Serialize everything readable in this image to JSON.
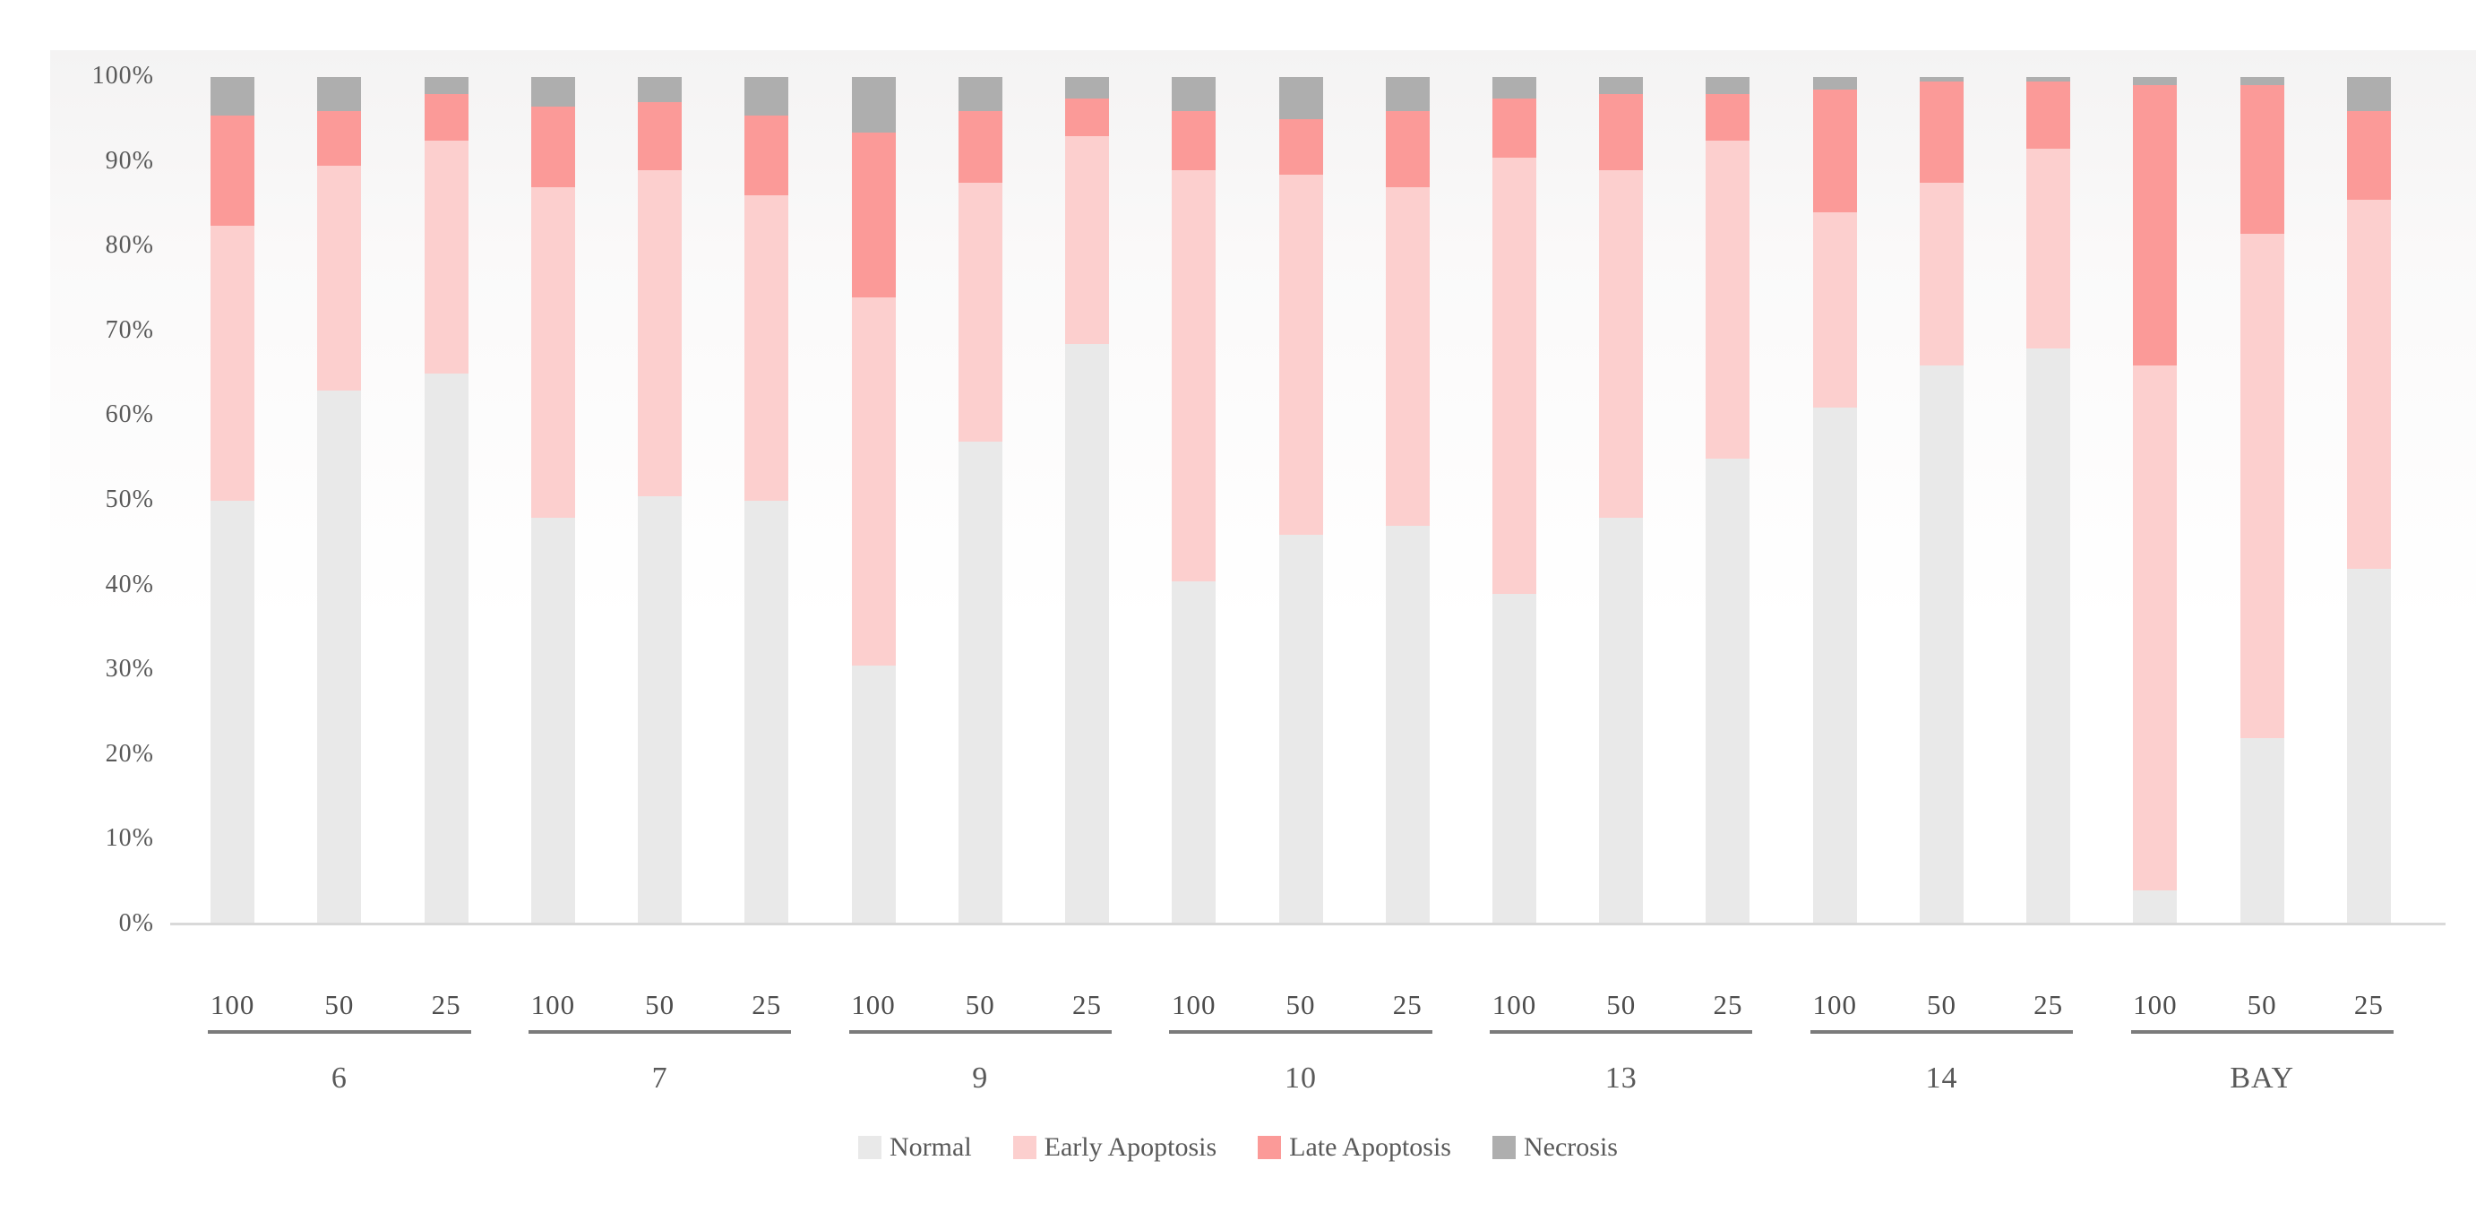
{
  "chart_data": {
    "type": "bar",
    "variant": "stacked-percent-column",
    "title": "",
    "xlabel": "",
    "ylabel": "",
    "ylim": [
      0,
      100
    ],
    "grid": false,
    "legend_position": "bottom-center",
    "y_axis": {
      "ticks": [
        {
          "label": "0%",
          "value": 0
        },
        {
          "label": "10%",
          "value": 10
        },
        {
          "label": "20%",
          "value": 20
        },
        {
          "label": "30%",
          "value": 30
        },
        {
          "label": "40%",
          "value": 40
        },
        {
          "label": "50%",
          "value": 50
        },
        {
          "label": "60%",
          "value": 60
        },
        {
          "label": "70%",
          "value": 70
        },
        {
          "label": "80%",
          "value": 80
        },
        {
          "label": "90%",
          "value": 90
        },
        {
          "label": "100%",
          "value": 100
        }
      ]
    },
    "group_labels": [
      "6",
      "7",
      "9",
      "10",
      "13",
      "14",
      "BAY"
    ],
    "dose_labels_per_group": [
      "100",
      "50",
      "25"
    ],
    "categories": [
      "6-100",
      "6-50",
      "6-25",
      "7-100",
      "7-50",
      "7-25",
      "9-100",
      "9-50",
      "9-25",
      "10-100",
      "10-50",
      "10-25",
      "13-100",
      "13-50",
      "13-25",
      "14-100",
      "14-50",
      "14-25",
      "BAY-100",
      "BAY-50",
      "BAY-25"
    ],
    "series": [
      {
        "name": "Normal",
        "color": "#e9e9e9",
        "values": [
          50,
          63,
          65,
          48,
          50.5,
          50,
          30.5,
          57,
          68.5,
          40.5,
          46,
          47,
          39,
          48,
          55,
          61,
          66,
          68,
          4,
          22,
          42
        ]
      },
      {
        "name": "Early Apoptosis",
        "color": "#fccfce",
        "values": [
          32.5,
          26.5,
          27.5,
          39,
          38.5,
          36,
          43.5,
          30.5,
          24.5,
          48.5,
          42.5,
          40,
          51.5,
          41,
          37.5,
          23,
          21.5,
          23.5,
          62,
          59.5,
          43.5
        ]
      },
      {
        "name": "Late Apoptosis",
        "color": "#fb9a98",
        "values": [
          13,
          6.5,
          5.5,
          9.5,
          8,
          9.5,
          19.5,
          8.5,
          4.5,
          7,
          6.5,
          9,
          7,
          9,
          5.5,
          14.5,
          12,
          8,
          33,
          17.5,
          10.5
        ]
      },
      {
        "name": "Necrosis",
        "color": "#aeaeae",
        "values": [
          4.5,
          4,
          2,
          3.5,
          3,
          4.5,
          6.5,
          4,
          2.5,
          4,
          5,
          4,
          2.5,
          2,
          2,
          1.5,
          0.5,
          0.5,
          1,
          1,
          4
        ]
      }
    ],
    "colors": {
      "axis_text": "#595959",
      "dose_text": "#4d4d4d",
      "baseline": "#d9d9d9",
      "group_underline": "#7b7b7b",
      "panel_tint": "#f4f3f3"
    }
  }
}
